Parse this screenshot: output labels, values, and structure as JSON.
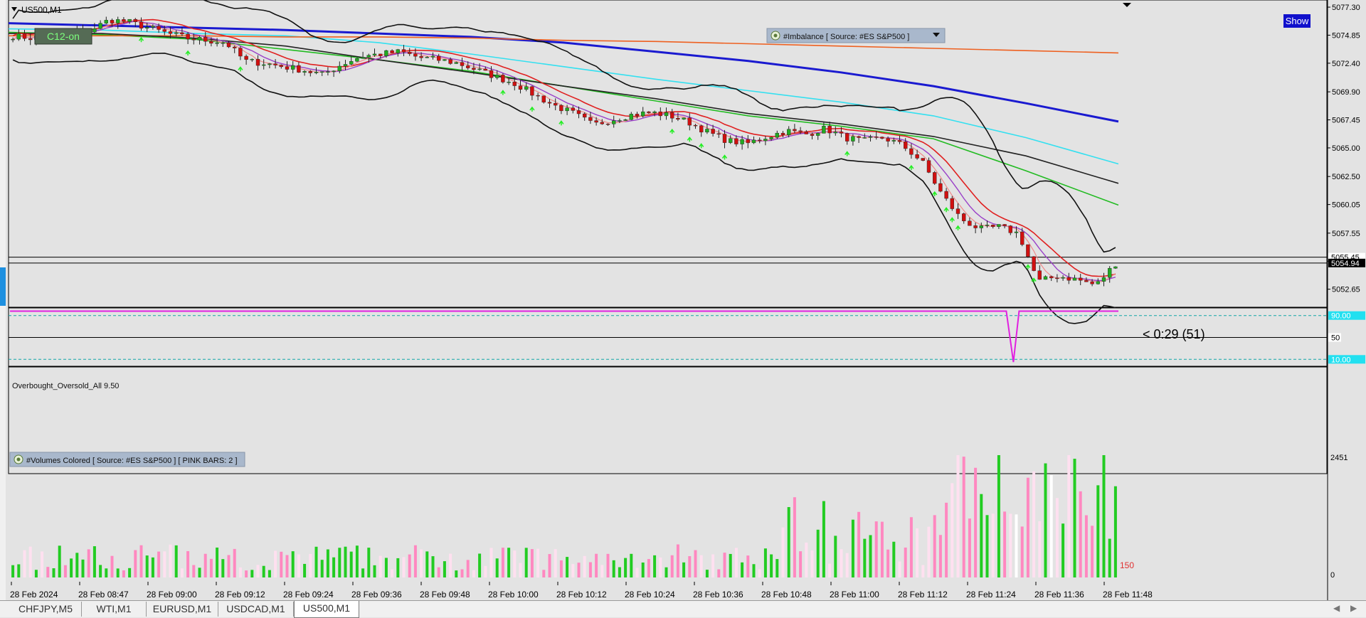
{
  "window": {
    "symbol_title": "US500,M1",
    "show_button": "Show",
    "c12_label": "C12-on"
  },
  "indicators": {
    "imbalance": "#Imbalance [ Source: #ES S&P500 ]",
    "oscillator": "Overbought_Oversold_All 9.50",
    "volumes": "#Volumes Colored [ Source: #ES S&P500 ]  [ PINK BARS: 2 ]"
  },
  "countdown": "< 0:29 (51)",
  "chart_data": {
    "type": "candlestick",
    "symbol": "US500",
    "timeframe": "M1",
    "ylim": [
      5051.2,
      5077.8
    ],
    "price_ticks": [
      "5077.30",
      "5074.85",
      "5072.40",
      "5069.90",
      "5067.45",
      "5065.00",
      "5062.50",
      "5060.05",
      "5057.55",
      "5055.10",
      "5052.65"
    ],
    "current_price_labels": [
      "5055.45",
      "5054.94"
    ],
    "time_ticks": [
      "28 Feb 2024",
      "28 Feb 08:47",
      "28 Feb 09:00",
      "28 Feb 09:12",
      "28 Feb 09:24",
      "28 Feb 09:36",
      "28 Feb 09:48",
      "28 Feb 10:00",
      "28 Feb 10:12",
      "28 Feb 10:24",
      "28 Feb 10:36",
      "28 Feb 10:48",
      "28 Feb 11:00",
      "28 Feb 11:12",
      "28 Feb 11:24",
      "28 Feb 11:36",
      "28 Feb 11:48"
    ],
    "close_path": [
      5074.8,
      5074.6,
      5074.9,
      5075.0,
      5075.3,
      5076.2,
      5076.0,
      5075.5,
      5075.0,
      5074.6,
      5074.4,
      5074.2,
      5072.6,
      5072.4,
      5072.1,
      5071.8,
      5071.4,
      5072.3,
      5073.0,
      5073.2,
      5073.4,
      5072.9,
      5072.7,
      5072.4,
      5071.8,
      5071.2,
      5070.6,
      5069.6,
      5068.7,
      5068.0,
      5067.0,
      5067.5,
      5067.9,
      5068.1,
      5067.8,
      5067.2,
      5066.3,
      5065.6,
      5065.4,
      5066.0,
      5066.5,
      5066.2,
      5066.7,
      5065.9,
      5065.6,
      5065.9,
      5065.2,
      5063.8,
      5061.0,
      5058.8,
      5057.9,
      5058.1,
      5057.5,
      5053.3,
      5053.8,
      5053.5,
      5053.0,
      5054.9
    ],
    "moving_averages": [
      {
        "color": "#1a1ad0",
        "values": [
          5075.9,
          5075.7,
          5075.5,
          5075.3,
          5075.0,
          5074.7,
          5074.2,
          5073.4,
          5072.6,
          5071.6,
          5070.4,
          5068.9,
          5067.3
        ]
      },
      {
        "color": "#33e0f0",
        "values": [
          5075.4,
          5075.3,
          5075.0,
          5074.8,
          5074.2,
          5073.2,
          5072.1,
          5071.0,
          5070.0,
          5069.0,
          5067.8,
          5065.9,
          5063.6
        ]
      },
      {
        "color": "#22bb22",
        "values": [
          5075.1,
          5074.9,
          5074.5,
          5073.6,
          5072.7,
          5071.7,
          5070.4,
          5069.1,
          5067.8,
          5066.9,
          5065.8,
          5063.0,
          5060.0
        ]
      },
      {
        "color": "#ee6020",
        "values": [
          5074.8,
          5074.8,
          5074.8,
          5074.7,
          5074.7,
          5074.6,
          5074.4,
          5074.3,
          5074.1,
          5073.9,
          5073.7,
          5073.5,
          5073.3
        ]
      },
      {
        "color": "#222222",
        "values": [
          5075.0,
          5075.0,
          5074.6,
          5073.9,
          5072.7,
          5071.6,
          5070.4,
          5069.3,
          5068.0,
          5067.1,
          5066.0,
          5064.3,
          5061.9
        ]
      }
    ],
    "oscillator": {
      "ylim": [
        0,
        100
      ],
      "levels": [
        90,
        50,
        10
      ],
      "level_labels": [
        "90.00",
        "50",
        "10.00"
      ]
    },
    "volume": {
      "max_label": "2451",
      "min_label": "0",
      "last_label": "150"
    }
  },
  "tabs": [
    "CHFJPY,M5",
    "WTI,M1",
    "EURUSD,M1",
    "USDCAD,M1",
    "US500,M1"
  ],
  "active_tab": "US500,M1"
}
